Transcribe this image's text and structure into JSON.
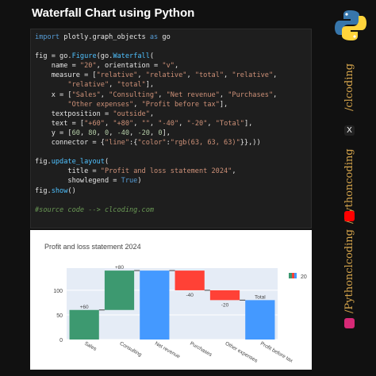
{
  "page": {
    "title": "Waterfall Chart using Python"
  },
  "code": {
    "lines": [
      [
        {
          "t": "import",
          "c": "kw"
        },
        {
          "t": " plotly.graph_objects "
        },
        {
          "t": "as",
          "c": "kw"
        },
        {
          "t": " go"
        }
      ],
      [],
      [
        {
          "t": "fig = go."
        },
        {
          "t": "Figure",
          "c": "fn"
        },
        {
          "t": "(go."
        },
        {
          "t": "Waterfall",
          "c": "fn"
        },
        {
          "t": "("
        }
      ],
      [
        {
          "t": "    name = "
        },
        {
          "t": "\"20\"",
          "c": "str"
        },
        {
          "t": ", orientation = "
        },
        {
          "t": "\"v\"",
          "c": "str"
        },
        {
          "t": ","
        }
      ],
      [
        {
          "t": "    measure = ["
        },
        {
          "t": "\"relative\"",
          "c": "str"
        },
        {
          "t": ", "
        },
        {
          "t": "\"relative\"",
          "c": "str"
        },
        {
          "t": ", "
        },
        {
          "t": "\"total\"",
          "c": "str"
        },
        {
          "t": ", "
        },
        {
          "t": "\"relative\"",
          "c": "str"
        },
        {
          "t": ","
        }
      ],
      [
        {
          "t": "        "
        },
        {
          "t": "\"relative\"",
          "c": "str"
        },
        {
          "t": ", "
        },
        {
          "t": "\"total\"",
          "c": "str"
        },
        {
          "t": "],"
        }
      ],
      [
        {
          "t": "    x = ["
        },
        {
          "t": "\"Sales\"",
          "c": "str"
        },
        {
          "t": ", "
        },
        {
          "t": "\"Consulting\"",
          "c": "str"
        },
        {
          "t": ", "
        },
        {
          "t": "\"Net revenue\"",
          "c": "str"
        },
        {
          "t": ", "
        },
        {
          "t": "\"Purchases\"",
          "c": "str"
        },
        {
          "t": ","
        }
      ],
      [
        {
          "t": "        "
        },
        {
          "t": "\"Other expenses\"",
          "c": "str"
        },
        {
          "t": ", "
        },
        {
          "t": "\"Profit before tax\"",
          "c": "str"
        },
        {
          "t": "],"
        }
      ],
      [
        {
          "t": "    textposition = "
        },
        {
          "t": "\"outside\"",
          "c": "str"
        },
        {
          "t": ","
        }
      ],
      [
        {
          "t": "    text = ["
        },
        {
          "t": "\"+60\"",
          "c": "str"
        },
        {
          "t": ", "
        },
        {
          "t": "\"+80\"",
          "c": "str"
        },
        {
          "t": ", "
        },
        {
          "t": "\"\"",
          "c": "str"
        },
        {
          "t": ", "
        },
        {
          "t": "\"-40\"",
          "c": "str"
        },
        {
          "t": ", "
        },
        {
          "t": "\"-20\"",
          "c": "str"
        },
        {
          "t": ", "
        },
        {
          "t": "\"Total\"",
          "c": "str"
        },
        {
          "t": "],"
        }
      ],
      [
        {
          "t": "    y = ["
        },
        {
          "t": "60",
          "c": "num"
        },
        {
          "t": ", "
        },
        {
          "t": "80",
          "c": "num"
        },
        {
          "t": ", "
        },
        {
          "t": "0",
          "c": "num"
        },
        {
          "t": ", "
        },
        {
          "t": "-40",
          "c": "num"
        },
        {
          "t": ", "
        },
        {
          "t": "-20",
          "c": "num"
        },
        {
          "t": ", "
        },
        {
          "t": "0",
          "c": "num"
        },
        {
          "t": "],"
        }
      ],
      [
        {
          "t": "    connector = {"
        },
        {
          "t": "\"line\"",
          "c": "str"
        },
        {
          "t": ":{"
        },
        {
          "t": "\"color\"",
          "c": "str"
        },
        {
          "t": ":"
        },
        {
          "t": "\"rgb(63, 63, 63)\"",
          "c": "str"
        },
        {
          "t": "}},))"
        }
      ],
      [],
      [
        {
          "t": "fig."
        },
        {
          "t": "update_layout",
          "c": "fn"
        },
        {
          "t": "("
        }
      ],
      [
        {
          "t": "        title = "
        },
        {
          "t": "\"Profit and loss statement 2024\"",
          "c": "str"
        },
        {
          "t": ","
        }
      ],
      [
        {
          "t": "        showlegend = "
        },
        {
          "t": "True",
          "c": "kw"
        },
        {
          "t": ")"
        }
      ],
      [
        {
          "t": "fig."
        },
        {
          "t": "show",
          "c": "fn"
        },
        {
          "t": "()"
        }
      ],
      [],
      [
        {
          "t": "#source code --> clcoding.com",
          "c": "cm"
        }
      ]
    ]
  },
  "chart_data": {
    "type": "waterfall",
    "title": "Profit and loss statement 2024",
    "categories": [
      "Sales",
      "Consulting",
      "Net revenue",
      "Purchases",
      "Other expenses",
      "Profit before tax"
    ],
    "measure": [
      "relative",
      "relative",
      "total",
      "relative",
      "relative",
      "total"
    ],
    "values": [
      60,
      80,
      0,
      -40,
      -20,
      0
    ],
    "text": [
      "+60",
      "+80",
      "",
      "-40",
      "-20",
      "Total"
    ],
    "y_ticks": [
      "0",
      "50",
      "100"
    ],
    "ylim": [
      0,
      145
    ],
    "legend": {
      "name": "20",
      "position": "top-right"
    },
    "colors": {
      "increasing": "#3d9970",
      "decreasing": "#ff4136",
      "total": "#4499ff",
      "connector": "#3f3f3f",
      "plot_bg": "#e5ecf6"
    }
  },
  "side": {
    "handle_1": "/clcoding",
    "handle_2": "/Pythoncoding",
    "handle_3": "/Pythonclcoding",
    "x_icon": "X"
  }
}
